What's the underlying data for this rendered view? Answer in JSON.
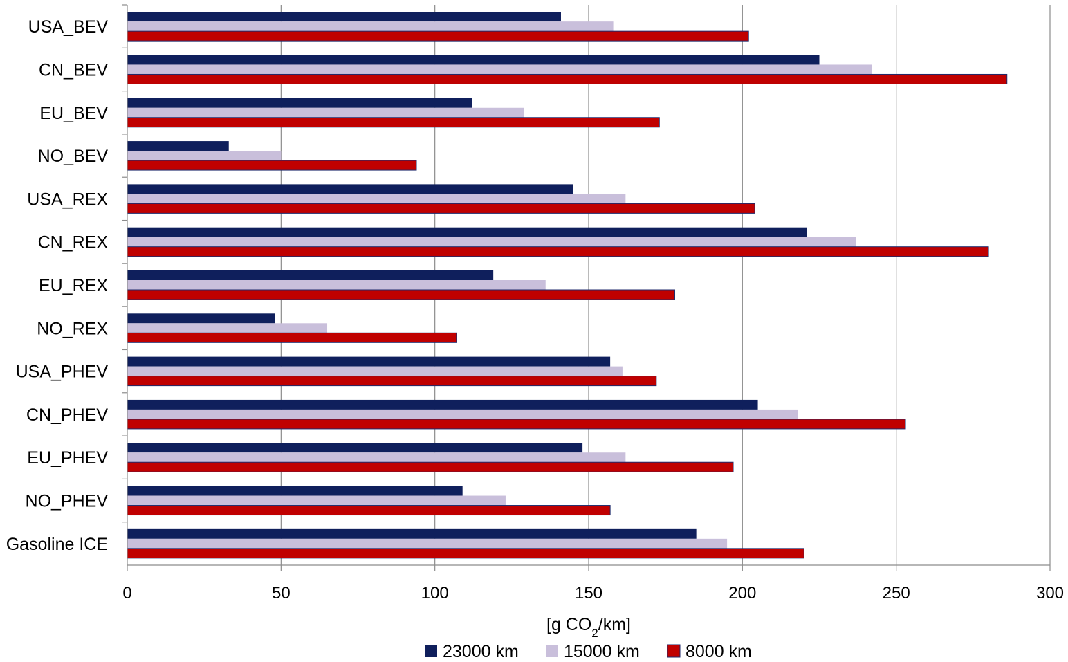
{
  "chart_data": {
    "type": "bar",
    "orientation": "horizontal",
    "categories": [
      "USA_BEV",
      "CN_BEV",
      "EU_BEV",
      "NO_BEV",
      "USA_REX",
      "CN_REX",
      "EU_REX",
      "NO_REX",
      "USA_PHEV",
      "CN_PHEV",
      "EU_PHEV",
      "NO_PHEV",
      "Gasoline ICE"
    ],
    "series": [
      {
        "name": "23000 km",
        "color": "#0f1f5c",
        "values": [
          141,
          225,
          112,
          33,
          145,
          221,
          119,
          48,
          157,
          205,
          148,
          109,
          185
        ]
      },
      {
        "name": "15000 km",
        "color": "#c9bfdb",
        "values": [
          158,
          242,
          129,
          50,
          162,
          237,
          136,
          65,
          161,
          218,
          162,
          123,
          195
        ]
      },
      {
        "name": "8000 km",
        "color": "#c00000",
        "values": [
          202,
          286,
          173,
          94,
          204,
          280,
          178,
          107,
          172,
          253,
          197,
          157,
          220
        ]
      }
    ],
    "title": "",
    "xlabel": {
      "prefix": "[g CO",
      "subscript": "2",
      "suffix": "/km]"
    },
    "ylabel": "",
    "xlim": [
      0,
      300
    ],
    "xticks": [
      0,
      50,
      100,
      150,
      200,
      250,
      300
    ],
    "grid": "vertical",
    "legend": "bottom-center"
  }
}
